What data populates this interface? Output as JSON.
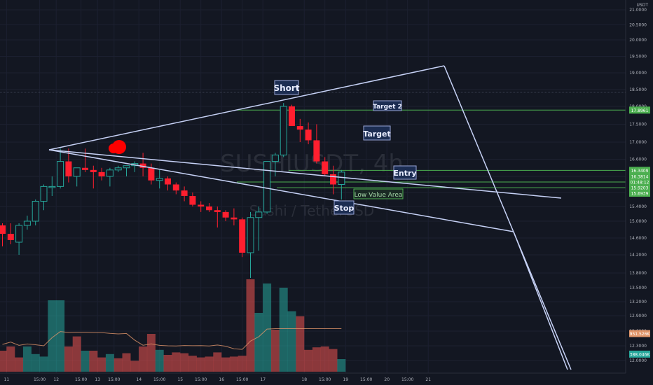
{
  "currency": "USDT",
  "watermark": {
    "symbol": "SUSHIUSDT, 4h",
    "name": "Sushi / TetherUSD"
  },
  "annotations": {
    "short": "Short",
    "target2": "Target 2",
    "target": "Target",
    "entry": "Entry",
    "low_value_area": "Low Value Area",
    "stop": "Stop"
  },
  "price_badges": [
    {
      "label": "17.8961",
      "value": 17.8961,
      "color": "#4caf50"
    },
    {
      "label": "16.3409",
      "value": 16.3409,
      "color": "#4caf50"
    },
    {
      "label": "16.3814",
      "value": 16.2,
      "color": "#4caf50"
    },
    {
      "label": "01:48:12",
      "value": 16.06,
      "color": "#4caf50"
    },
    {
      "label": "15.9203",
      "value": 15.9203,
      "color": "#4caf50"
    },
    {
      "label": "15.6939",
      "value": 15.78,
      "color": "#4caf50"
    },
    {
      "label": "951.526K",
      "value": 12.55,
      "color": "#e0956a"
    },
    {
      "label": "388.046K",
      "value": 12.13,
      "color": "#26a69a"
    }
  ],
  "chart_data": {
    "type": "candlestick",
    "y_ticks": [
      "21.0000",
      "20.5000",
      "20.0000",
      "19.5000",
      "19.0000",
      "18.5000",
      "18.0000",
      "17.5000",
      "17.0000",
      "16.6000",
      "16.2000",
      "15.8000",
      "15.4000",
      "15.0000",
      "14.6000",
      "14.2000",
      "13.8000",
      "13.5000",
      "13.2000",
      "12.9000",
      "12.6000",
      "12.3000",
      "12.0000"
    ],
    "y_tick_values": [
      21.0,
      20.5,
      20.0,
      19.5,
      19.0,
      18.5,
      18.0,
      17.5,
      17.0,
      16.6,
      16.2,
      15.8,
      15.4,
      15.0,
      14.6,
      14.2,
      13.8,
      13.5,
      13.2,
      12.9,
      12.6,
      12.3,
      12.0
    ],
    "x_ticks": [
      "11",
      "15:00",
      "12",
      "15:00",
      "13",
      "15:00",
      "14",
      "15:00",
      "15",
      "15:00",
      "16",
      "15:00",
      "17",
      "18",
      "15:00",
      "19",
      "15:00",
      "20",
      "15:00",
      "21"
    ],
    "x_tick_index": [
      0.5,
      4.5,
      6.5,
      9.5,
      11.5,
      13.5,
      16.5,
      19,
      21.5,
      24,
      26.5,
      29,
      31.5,
      36.5,
      39,
      41.5,
      44,
      46.5,
      49,
      51.5
    ],
    "candles": [
      {
        "o": 14.9,
        "h": 14.95,
        "l": 14.4,
        "c": 14.7
      },
      {
        "o": 14.7,
        "h": 14.95,
        "l": 14.45,
        "c": 14.55
      },
      {
        "o": 14.5,
        "h": 14.95,
        "l": 14.2,
        "c": 14.9
      },
      {
        "o": 14.9,
        "h": 15.15,
        "l": 14.8,
        "c": 15.0
      },
      {
        "o": 15.0,
        "h": 15.6,
        "l": 14.9,
        "c": 15.55
      },
      {
        "o": 15.55,
        "h": 16.0,
        "l": 15.3,
        "c": 15.95
      },
      {
        "o": 15.95,
        "h": 16.2,
        "l": 15.7,
        "c": 15.95
      },
      {
        "o": 15.95,
        "h": 16.85,
        "l": 15.9,
        "c": 16.55
      },
      {
        "o": 16.55,
        "h": 16.85,
        "l": 16.05,
        "c": 16.2
      },
      {
        "o": 16.2,
        "h": 16.4,
        "l": 15.95,
        "c": 16.4
      },
      {
        "o": 16.4,
        "h": 16.85,
        "l": 16.3,
        "c": 16.35
      },
      {
        "o": 16.35,
        "h": 16.45,
        "l": 15.9,
        "c": 16.3
      },
      {
        "o": 16.3,
        "h": 16.4,
        "l": 16.1,
        "c": 16.2
      },
      {
        "o": 16.2,
        "h": 16.4,
        "l": 15.95,
        "c": 16.35
      },
      {
        "o": 16.35,
        "h": 16.45,
        "l": 16.3,
        "c": 16.4
      },
      {
        "o": 16.4,
        "h": 16.45,
        "l": 16.2,
        "c": 16.45
      },
      {
        "o": 16.45,
        "h": 16.55,
        "l": 16.3,
        "c": 16.5
      },
      {
        "o": 16.5,
        "h": 16.75,
        "l": 16.2,
        "c": 16.4
      },
      {
        "o": 16.4,
        "h": 16.5,
        "l": 16.0,
        "c": 16.1
      },
      {
        "o": 16.1,
        "h": 16.35,
        "l": 15.9,
        "c": 16.15
      },
      {
        "o": 16.15,
        "h": 16.2,
        "l": 15.85,
        "c": 16.0
      },
      {
        "o": 16.0,
        "h": 16.05,
        "l": 15.75,
        "c": 15.85
      },
      {
        "o": 15.85,
        "h": 15.95,
        "l": 15.55,
        "c": 15.7
      },
      {
        "o": 15.7,
        "h": 15.8,
        "l": 15.4,
        "c": 15.45
      },
      {
        "o": 15.45,
        "h": 15.55,
        "l": 15.25,
        "c": 15.4
      },
      {
        "o": 15.4,
        "h": 15.5,
        "l": 15.25,
        "c": 15.3
      },
      {
        "o": 15.3,
        "h": 15.4,
        "l": 14.85,
        "c": 15.25
      },
      {
        "o": 15.25,
        "h": 15.3,
        "l": 15.0,
        "c": 15.1
      },
      {
        "o": 15.1,
        "h": 15.35,
        "l": 14.9,
        "c": 15.05
      },
      {
        "o": 15.05,
        "h": 15.1,
        "l": 14.15,
        "c": 14.25
      },
      {
        "o": 14.25,
        "h": 15.25,
        "l": 13.7,
        "c": 15.1
      },
      {
        "o": 15.1,
        "h": 15.4,
        "l": 14.3,
        "c": 15.25
      },
      {
        "o": 15.25,
        "h": 16.55,
        "l": 15.2,
        "c": 16.55
      },
      {
        "o": 16.55,
        "h": 16.75,
        "l": 16.2,
        "c": 16.7
      },
      {
        "o": 16.7,
        "h": 18.1,
        "l": 16.65,
        "c": 18.0
      },
      {
        "o": 18.0,
        "h": 18.05,
        "l": 17.45,
        "c": 17.45
      },
      {
        "o": 17.45,
        "h": 17.65,
        "l": 17.0,
        "c": 17.35
      },
      {
        "o": 17.35,
        "h": 17.55,
        "l": 16.95,
        "c": 17.05
      },
      {
        "o": 17.05,
        "h": 17.5,
        "l": 16.5,
        "c": 16.55
      },
      {
        "o": 16.55,
        "h": 16.65,
        "l": 16.2,
        "c": 16.25
      },
      {
        "o": 16.25,
        "h": 16.45,
        "l": 15.75,
        "c": 16.0
      },
      {
        "o": 16.0,
        "h": 16.35,
        "l": 15.6,
        "c": 16.3
      }
    ],
    "volumes": [
      {
        "v": 250,
        "up": false
      },
      {
        "v": 300,
        "up": false
      },
      {
        "v": 170,
        "up": false
      },
      {
        "v": 300,
        "up": true
      },
      {
        "v": 210,
        "up": true
      },
      {
        "v": 180,
        "up": true
      },
      {
        "v": 850,
        "up": true
      },
      {
        "v": 850,
        "up": true
      },
      {
        "v": 300,
        "up": false
      },
      {
        "v": 420,
        "up": false
      },
      {
        "v": 250,
        "up": true
      },
      {
        "v": 250,
        "up": false
      },
      {
        "v": 170,
        "up": false
      },
      {
        "v": 210,
        "up": true
      },
      {
        "v": 160,
        "up": false
      },
      {
        "v": 220,
        "up": false
      },
      {
        "v": 130,
        "up": false
      },
      {
        "v": 300,
        "up": false
      },
      {
        "v": 450,
        "up": false
      },
      {
        "v": 260,
        "up": true
      },
      {
        "v": 200,
        "up": false
      },
      {
        "v": 230,
        "up": false
      },
      {
        "v": 220,
        "up": false
      },
      {
        "v": 190,
        "up": false
      },
      {
        "v": 170,
        "up": false
      },
      {
        "v": 180,
        "up": false
      },
      {
        "v": 230,
        "up": false
      },
      {
        "v": 170,
        "up": false
      },
      {
        "v": 180,
        "up": false
      },
      {
        "v": 190,
        "up": false
      },
      {
        "v": 1100,
        "up": false
      },
      {
        "v": 700,
        "up": true
      },
      {
        "v": 1050,
        "up": true
      },
      {
        "v": 500,
        "up": false
      },
      {
        "v": 1000,
        "up": true
      },
      {
        "v": 720,
        "up": true
      },
      {
        "v": 660,
        "up": false
      },
      {
        "v": 260,
        "up": false
      },
      {
        "v": 290,
        "up": false
      },
      {
        "v": 300,
        "up": false
      },
      {
        "v": 270,
        "up": false
      },
      {
        "v": 150,
        "up": true
      }
    ],
    "levels": {
      "target2": 17.8961,
      "entry": 16.3409,
      "mid": 16.06,
      "low": 15.9203
    }
  }
}
